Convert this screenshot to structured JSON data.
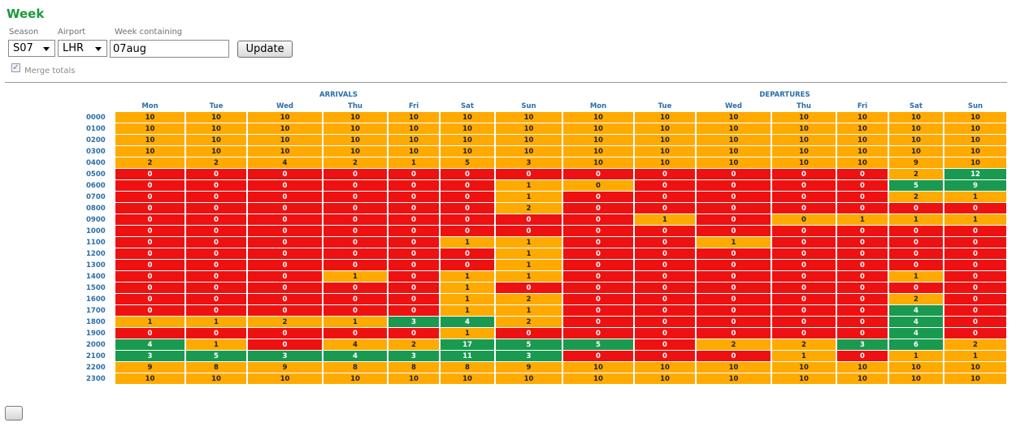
{
  "title": "Week",
  "form": {
    "season_label": "Season",
    "season_value": "S07",
    "airport_label": "Airport",
    "airport_value": "LHR",
    "week_label": "Week containing",
    "week_value": "07aug",
    "update_label": "Update",
    "merge_label": "Merge totals",
    "merge_checked": true
  },
  "table": {
    "groups": [
      "ARRIVALS",
      "DEPARTURES"
    ],
    "days": [
      "Mon",
      "Tue",
      "Wed",
      "Thu",
      "Fri",
      "Sat",
      "Sun"
    ],
    "hours": [
      "0000",
      "0100",
      "0200",
      "0300",
      "0400",
      "0500",
      "0600",
      "0700",
      "0800",
      "0900",
      "1000",
      "1100",
      "1200",
      "1300",
      "1400",
      "1500",
      "1600",
      "1700",
      "1800",
      "1900",
      "2000",
      "2100",
      "2200",
      "2300"
    ],
    "rows": [
      [
        10,
        10,
        10,
        10,
        10,
        10,
        10,
        10,
        10,
        10,
        10,
        10,
        10,
        10
      ],
      [
        10,
        10,
        10,
        10,
        10,
        10,
        10,
        10,
        10,
        10,
        10,
        10,
        10,
        10
      ],
      [
        10,
        10,
        10,
        10,
        10,
        10,
        10,
        10,
        10,
        10,
        10,
        10,
        10,
        10
      ],
      [
        10,
        10,
        10,
        10,
        10,
        10,
        10,
        10,
        10,
        10,
        10,
        10,
        10,
        10
      ],
      [
        2,
        2,
        4,
        2,
        1,
        5,
        3,
        10,
        10,
        10,
        10,
        10,
        9,
        10
      ],
      [
        0,
        0,
        0,
        0,
        0,
        0,
        0,
        0,
        0,
        0,
        0,
        0,
        2,
        12
      ],
      [
        0,
        0,
        0,
        0,
        0,
        0,
        1,
        0,
        0,
        0,
        0,
        0,
        5,
        9
      ],
      [
        0,
        0,
        0,
        0,
        0,
        0,
        1,
        0,
        0,
        0,
        0,
        0,
        2,
        1
      ],
      [
        0,
        0,
        0,
        0,
        0,
        0,
        2,
        0,
        0,
        0,
        0,
        0,
        0,
        0
      ],
      [
        0,
        0,
        0,
        0,
        0,
        0,
        0,
        0,
        1,
        0,
        0,
        1,
        1,
        1
      ],
      [
        0,
        0,
        0,
        0,
        0,
        0,
        0,
        0,
        0,
        0,
        0,
        0,
        0,
        0
      ],
      [
        0,
        0,
        0,
        0,
        0,
        1,
        1,
        0,
        0,
        1,
        0,
        0,
        0,
        0
      ],
      [
        0,
        0,
        0,
        0,
        0,
        0,
        1,
        0,
        0,
        0,
        0,
        0,
        0,
        0
      ],
      [
        0,
        0,
        0,
        0,
        0,
        0,
        1,
        0,
        0,
        0,
        0,
        0,
        0,
        0
      ],
      [
        0,
        0,
        0,
        1,
        0,
        1,
        1,
        0,
        0,
        0,
        0,
        0,
        1,
        0
      ],
      [
        0,
        0,
        0,
        0,
        0,
        1,
        0,
        0,
        0,
        0,
        0,
        0,
        0,
        0
      ],
      [
        0,
        0,
        0,
        0,
        0,
        1,
        2,
        0,
        0,
        0,
        0,
        0,
        2,
        0
      ],
      [
        0,
        0,
        0,
        0,
        0,
        1,
        1,
        0,
        0,
        0,
        0,
        0,
        4,
        0
      ],
      [
        1,
        1,
        2,
        1,
        3,
        4,
        2,
        0,
        0,
        0,
        0,
        0,
        4,
        0
      ],
      [
        0,
        0,
        0,
        0,
        0,
        1,
        0,
        0,
        0,
        0,
        0,
        0,
        4,
        0
      ],
      [
        4,
        1,
        0,
        4,
        2,
        17,
        5,
        5,
        0,
        2,
        2,
        3,
        6,
        2
      ],
      [
        3,
        5,
        3,
        4,
        3,
        11,
        3,
        0,
        0,
        0,
        1,
        0,
        1,
        1
      ],
      [
        9,
        8,
        9,
        8,
        8,
        8,
        9,
        10,
        10,
        10,
        10,
        10,
        10,
        10
      ],
      [
        10,
        10,
        10,
        10,
        10,
        10,
        10,
        10,
        10,
        10,
        10,
        10,
        10,
        10
      ]
    ],
    "colors": [
      "OOOOOOOOOOOOOO",
      "OOOOOOOOOOOOOO",
      "OOOOOOOOOOOOOO",
      "OOOOOOOOOOOOOO",
      "OOOOOOOOOOOOOO",
      "RRRRRRRRRRRROG",
      "RRRRRROORRRRGG",
      "RRRRRRORRRRROO",
      "RRRRRRORRRRRRR",
      "RRRRRRRROROOOO",
      "RRRRRRRRRRRRRR",
      "RRRRROORRORRRR",
      "RRRRRRORRRRRRR",
      "RRRRRRORRRRRRR",
      "RRROROORRRRROR",
      "RRRRRORRRRRRRR",
      "RRRRROORRRRROR",
      "RRRRROORRRRRGR",
      "OOOOGGORRRRRGR",
      "RRRRRORRRRRRGR",
      "GOROOGGGROOGGO",
      "GGGGGGGRRROROO",
      "OOOOOOOOOOOOOO",
      "OOOOOOOOOOOOOO"
    ],
    "palette": {
      "R": "#ee1111",
      "O": "#ffaa00",
      "G": "#1a9a50"
    }
  }
}
